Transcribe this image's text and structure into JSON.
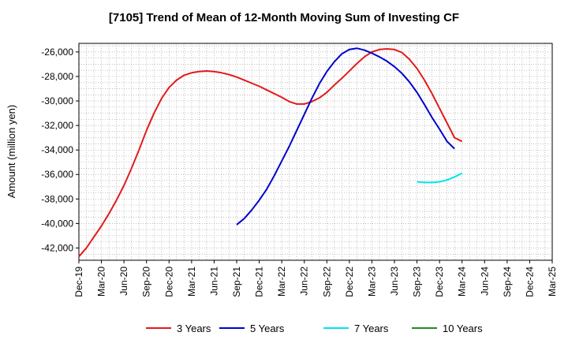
{
  "chart_data": {
    "type": "line",
    "title": "[7105]  Trend of Mean of 12-Month Moving Sum of Investing CF",
    "xlabel": "",
    "ylabel": "Amount (million yen)",
    "ylim": [
      -43000,
      -25300
    ],
    "yticks": [
      -26000,
      -28000,
      -30000,
      -32000,
      -34000,
      -36000,
      -38000,
      -40000,
      -42000
    ],
    "ytick_labels": [
      "-26,000",
      "-28,000",
      "-30,000",
      "-32,000",
      "-34,000",
      "-36,000",
      "-38,000",
      "-40,000",
      "-42,000"
    ],
    "xticks": [
      "Dec-19",
      "Mar-20",
      "Jun-20",
      "Sep-20",
      "Dec-20",
      "Mar-21",
      "Jun-21",
      "Sep-21",
      "Dec-21",
      "Mar-22",
      "Jun-22",
      "Sep-22",
      "Dec-22",
      "Mar-23",
      "Jun-23",
      "Sep-23",
      "Dec-23",
      "Mar-24",
      "Jun-24",
      "Sep-24",
      "Dec-24",
      "Mar-25"
    ],
    "grid": true,
    "legend_position": "bottom",
    "series": [
      {
        "name": "3 Years",
        "color": "#e31a1c",
        "points": [
          [
            "Dec-19",
            -42700
          ],
          [
            "Jan-20",
            -42000
          ],
          [
            "Feb-20",
            -41100
          ],
          [
            "Mar-20",
            -40200
          ],
          [
            "Apr-20",
            -39200
          ],
          [
            "May-20",
            -38100
          ],
          [
            "Jun-20",
            -36900
          ],
          [
            "Jul-20",
            -35500
          ],
          [
            "Aug-20",
            -34000
          ],
          [
            "Sep-20",
            -32400
          ],
          [
            "Oct-20",
            -31000
          ],
          [
            "Nov-20",
            -29800
          ],
          [
            "Dec-20",
            -28900
          ],
          [
            "Jan-21",
            -28300
          ],
          [
            "Feb-21",
            -27900
          ],
          [
            "Mar-21",
            -27700
          ],
          [
            "Apr-21",
            -27600
          ],
          [
            "May-21",
            -27550
          ],
          [
            "Jun-21",
            -27600
          ],
          [
            "Jul-21",
            -27700
          ],
          [
            "Aug-21",
            -27850
          ],
          [
            "Sep-21",
            -28050
          ],
          [
            "Oct-21",
            -28300
          ],
          [
            "Nov-21",
            -28550
          ],
          [
            "Dec-21",
            -28800
          ],
          [
            "Jan-22",
            -29100
          ],
          [
            "Feb-22",
            -29400
          ],
          [
            "Mar-22",
            -29700
          ],
          [
            "Apr-22",
            -30050
          ],
          [
            "May-22",
            -30250
          ],
          [
            "Jun-22",
            -30250
          ],
          [
            "Jul-22",
            -30050
          ],
          [
            "Aug-22",
            -29750
          ],
          [
            "Sep-22",
            -29300
          ],
          [
            "Oct-22",
            -28700
          ],
          [
            "Nov-22",
            -28150
          ],
          [
            "Dec-22",
            -27550
          ],
          [
            "Jan-23",
            -26950
          ],
          [
            "Feb-23",
            -26400
          ],
          [
            "Mar-23",
            -26000
          ],
          [
            "Apr-23",
            -25800
          ],
          [
            "May-23",
            -25750
          ],
          [
            "Jun-23",
            -25800
          ],
          [
            "Jul-23",
            -26050
          ],
          [
            "Aug-23",
            -26600
          ],
          [
            "Sep-23",
            -27350
          ],
          [
            "Oct-23",
            -28300
          ],
          [
            "Nov-23",
            -29400
          ],
          [
            "Dec-23",
            -30600
          ],
          [
            "Jan-24",
            -31800
          ],
          [
            "Feb-24",
            -33000
          ],
          [
            "Mar-24",
            -33300
          ]
        ]
      },
      {
        "name": "5 Years",
        "color": "#0000cc",
        "points": [
          [
            "Sep-21",
            -40100
          ],
          [
            "Oct-21",
            -39600
          ],
          [
            "Nov-21",
            -38900
          ],
          [
            "Dec-21",
            -38100
          ],
          [
            "Jan-22",
            -37200
          ],
          [
            "Feb-22",
            -36100
          ],
          [
            "Mar-22",
            -34900
          ],
          [
            "Apr-22",
            -33700
          ],
          [
            "May-22",
            -32400
          ],
          [
            "Jun-22",
            -31100
          ],
          [
            "Jul-22",
            -29800
          ],
          [
            "Aug-22",
            -28600
          ],
          [
            "Sep-22",
            -27600
          ],
          [
            "Oct-22",
            -26800
          ],
          [
            "Nov-22",
            -26150
          ],
          [
            "Dec-22",
            -25800
          ],
          [
            "Jan-23",
            -25700
          ],
          [
            "Feb-23",
            -25850
          ],
          [
            "Mar-23",
            -26100
          ],
          [
            "Apr-23",
            -26400
          ],
          [
            "May-23",
            -26750
          ],
          [
            "Jun-23",
            -27200
          ],
          [
            "Jul-23",
            -27750
          ],
          [
            "Aug-23",
            -28450
          ],
          [
            "Sep-23",
            -29300
          ],
          [
            "Oct-23",
            -30300
          ],
          [
            "Nov-23",
            -31350
          ],
          [
            "Dec-23",
            -32300
          ],
          [
            "Jan-24",
            -33300
          ],
          [
            "Feb-24",
            -33900
          ]
        ]
      },
      {
        "name": "7 Years",
        "color": "#00e5ee",
        "points": [
          [
            "Sep-23",
            -36600
          ],
          [
            "Oct-23",
            -36650
          ],
          [
            "Nov-23",
            -36650
          ],
          [
            "Dec-23",
            -36600
          ],
          [
            "Jan-24",
            -36450
          ],
          [
            "Feb-24",
            -36200
          ],
          [
            "Mar-24",
            -35900
          ]
        ]
      },
      {
        "name": "10 Years",
        "color": "#228b22",
        "points": []
      }
    ]
  }
}
